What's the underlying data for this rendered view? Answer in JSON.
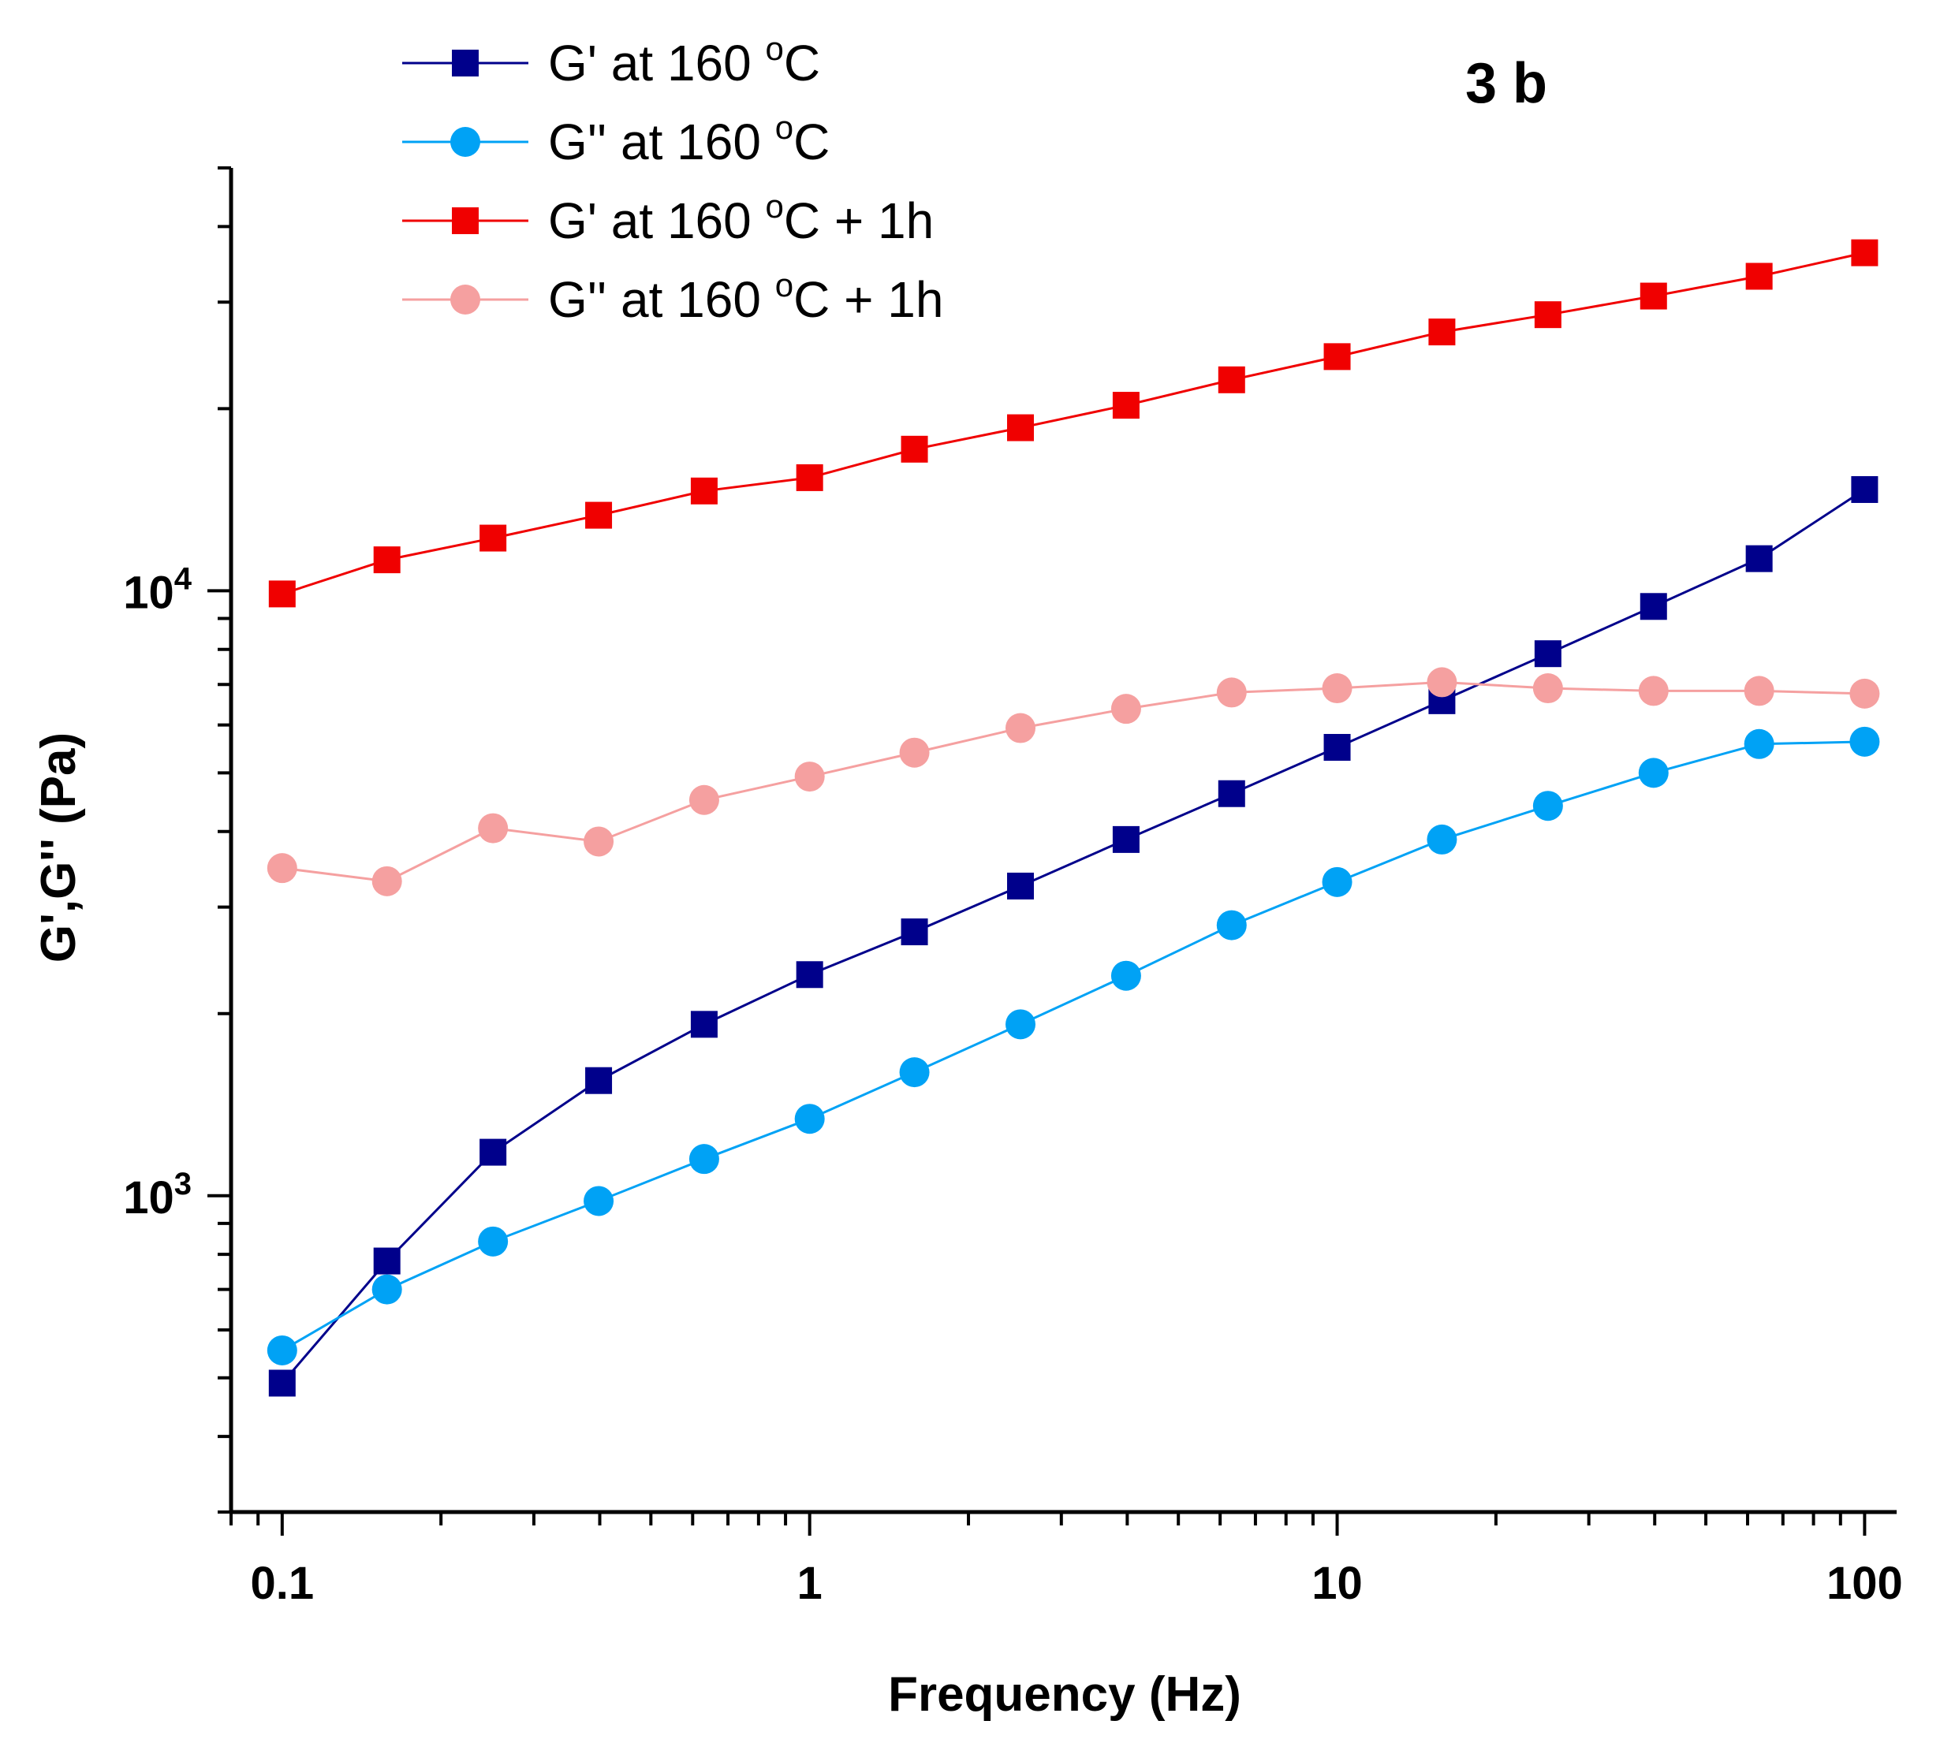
{
  "chart_data": {
    "type": "line",
    "panel_label": "3 b",
    "xlabel": "Frequency (Hz)",
    "ylabel": "G',G'' (Pa)",
    "x_scale": "log",
    "y_scale": "log",
    "xlim": [
      0.08,
      115
    ],
    "ylim": [
      300,
      50000
    ],
    "x_ticks": [
      {
        "value": 0.1,
        "label": "0.1"
      },
      {
        "value": 1,
        "label": "1"
      },
      {
        "value": 10,
        "label": "10"
      },
      {
        "value": 100,
        "label": "100"
      }
    ],
    "y_ticks": [
      {
        "value": 1000,
        "base": "10",
        "exp": "3"
      },
      {
        "value": 10000,
        "base": "10",
        "exp": "4"
      }
    ],
    "grid": false,
    "legend_position": "top-left",
    "x": [
      0.1,
      0.158,
      0.251,
      0.398,
      0.631,
      1,
      1.58,
      2.51,
      3.98,
      6.31,
      10,
      15.8,
      25.1,
      39.8,
      63.1,
      100
    ],
    "series": [
      {
        "name": "G' at 160 °C",
        "legend": {
          "main": "G' at 160 ",
          "sup": "o",
          "rest": "C"
        },
        "marker": "square",
        "color": "#00008B",
        "values": [
          490,
          780,
          1180,
          1550,
          1920,
          2320,
          2730,
          3250,
          3880,
          4620,
          5510,
          6580,
          7870,
          9420,
          11300,
          14700
        ]
      },
      {
        "name": "G'' at 160 °C",
        "legend": {
          "main": "G'' at 160 ",
          "sup": "o",
          "rest": "C"
        },
        "marker": "circle",
        "color": "#00A2F5",
        "values": [
          555,
          700,
          840,
          980,
          1150,
          1340,
          1600,
          1920,
          2310,
          2800,
          3300,
          3880,
          4410,
          5000,
          5580,
          5630
        ]
      },
      {
        "name": "G' at 160 °C + 1h",
        "legend": {
          "main": "G' at 160 ",
          "sup": "o",
          "rest": "C + 1h"
        },
        "marker": "square",
        "color": "#F00000",
        "values": [
          9880,
          11250,
          12220,
          13330,
          14620,
          15380,
          17140,
          18600,
          20260,
          22320,
          24380,
          26780,
          28600,
          30700,
          33100,
          36200
        ]
      },
      {
        "name": "G'' at 160 °C + 1h",
        "legend": {
          "main": "G'' at 160 ",
          "sup": "o",
          "rest": "C + 1h"
        },
        "marker": "circle",
        "color": "#F5A0A0",
        "values": [
          3480,
          3310,
          4050,
          3850,
          4510,
          4930,
          5400,
          5930,
          6380,
          6790,
          6900,
          7060,
          6900,
          6830,
          6830,
          6760
        ]
      }
    ]
  }
}
